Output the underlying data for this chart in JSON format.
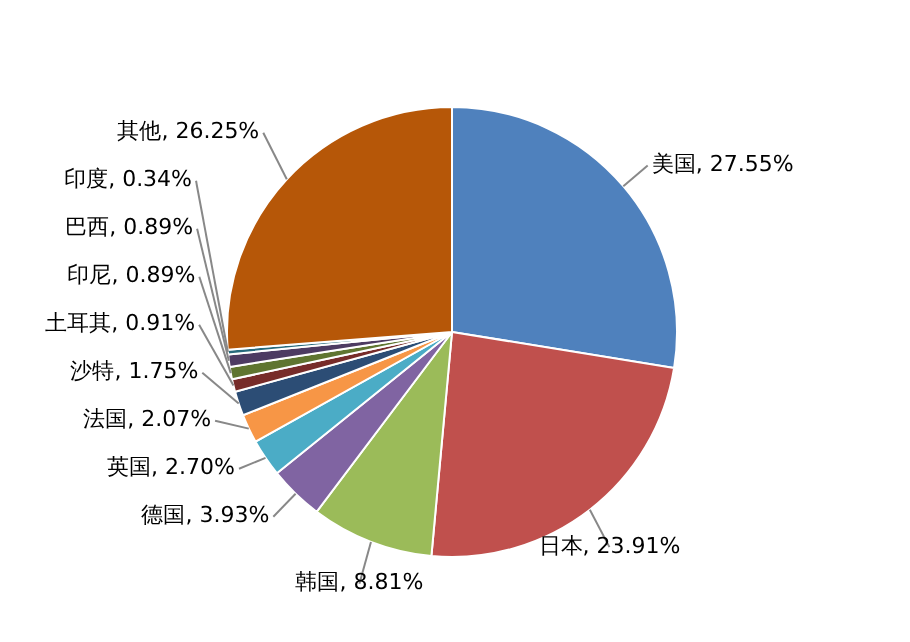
{
  "chart_data": {
    "type": "pie",
    "categories": [
      "美国",
      "日本",
      "韩国",
      "德国",
      "英国",
      "法国",
      "沙特",
      "土耳其",
      "印尼",
      "巴西",
      "印度",
      "其他"
    ],
    "values": [
      27.55,
      23.91,
      8.81,
      3.93,
      2.7,
      2.07,
      1.75,
      0.91,
      0.89,
      0.89,
      0.34,
      26.25
    ],
    "value_labels": [
      "27.55%",
      "23.91%",
      "8.81%",
      "3.93%",
      "2.70%",
      "2.07%",
      "1.75%",
      "0.91%",
      "0.89%",
      "0.89%",
      "0.34%",
      "26.25%"
    ],
    "colors": [
      "#4f81bd",
      "#c0504d",
      "#9bbb59",
      "#8064a2",
      "#4bacc6",
      "#f79646",
      "#2c4d75",
      "#772c2a",
      "#5f7530",
      "#4d3b62",
      "#276a7c",
      "#b65708"
    ],
    "legend": false
  }
}
